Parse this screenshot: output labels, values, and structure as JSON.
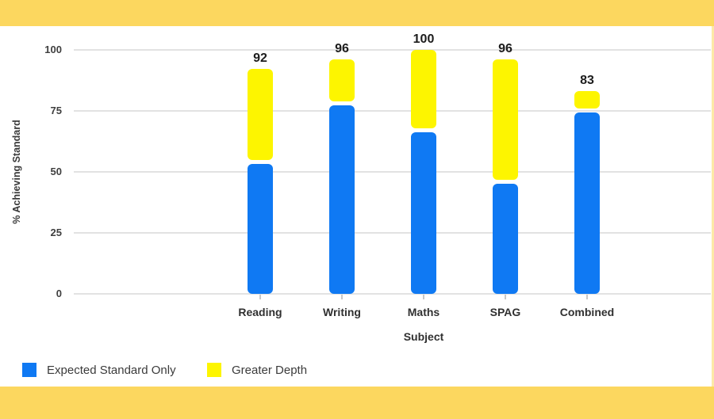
{
  "frame": {
    "band_color": "#FCD75F",
    "card_background": "#ffffff"
  },
  "chart_data": {
    "type": "bar",
    "stacked": true,
    "title": "",
    "xlabel": "Subject",
    "ylabel": "% Achieving Standard",
    "categories": [
      "Reading",
      "Writing",
      "Maths",
      "SPAG",
      "Combined"
    ],
    "series": [
      {
        "name": "Expected Standard Only",
        "color": "#0F79F3",
        "values": [
          54,
          78,
          67,
          46,
          75
        ]
      },
      {
        "name": "Greater Depth",
        "color": "#FDF500",
        "values": [
          38,
          18,
          33,
          50,
          8
        ]
      }
    ],
    "totals": [
      92,
      96,
      100,
      96,
      83
    ],
    "total_labels": [
      "92",
      "96",
      "100",
      "96",
      "83"
    ],
    "yticks": [
      0,
      25,
      50,
      75,
      100
    ],
    "ytick_labels": [
      "0",
      "25",
      "50",
      "75",
      "100"
    ],
    "ylim": [
      0,
      100
    ],
    "grid": true,
    "gridline_color": "#E2E2E2",
    "tick_color": "#C8C8C8",
    "legend_position": "bottom-left"
  }
}
